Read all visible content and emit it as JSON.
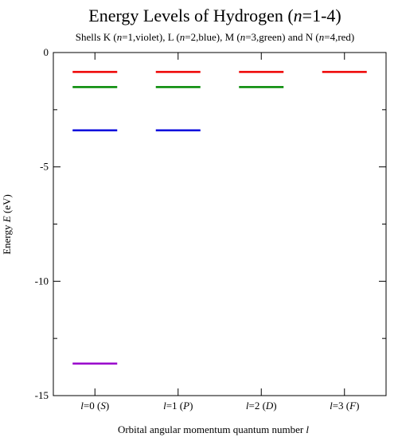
{
  "chart_data": {
    "type": "line",
    "title": {
      "pre": "Energy Levels of Hydrogen (",
      "it": "n",
      "post": "=1-4)"
    },
    "subtitle": [
      {
        "t": "Shells K ("
      },
      {
        "t": "n",
        "i": true
      },
      {
        "t": "=1,violet), L ("
      },
      {
        "t": "n",
        "i": true
      },
      {
        "t": "=2,blue), M ("
      },
      {
        "t": "n",
        "i": true
      },
      {
        "t": "=3,green) and N ("
      },
      {
        "t": "n",
        "i": true
      },
      {
        "t": "=4,red)"
      }
    ],
    "xlabel": {
      "pre": "Orbital angular momentum quantum number ",
      "it": "l"
    },
    "ylabel": {
      "pre": "Energy ",
      "it": "E",
      "post": " (eV)"
    },
    "ylim": [
      -15,
      0
    ],
    "yticks": [
      0,
      -5,
      -10,
      -15
    ],
    "ytick_labels": [
      "0",
      "-5",
      "-10",
      "-15"
    ],
    "yticks_minor": [
      -2.5,
      -7.5,
      -12.5
    ],
    "categories": [
      {
        "pre": "",
        "a": "l",
        "mid": "=0 (",
        "b": "S",
        "post": ")"
      },
      {
        "pre": "",
        "a": "l",
        "mid": "=1 (",
        "b": "P",
        "post": ")"
      },
      {
        "pre": "",
        "a": "l",
        "mid": "=2 (",
        "b": "D",
        "post": ")"
      },
      {
        "pre": "",
        "a": "l",
        "mid": "=3 (",
        "b": "F",
        "post": ")"
      }
    ],
    "grid": false,
    "legend": "none",
    "series": [
      {
        "shell": "K",
        "n": 1,
        "color": "#9900cc",
        "energy": -13.6,
        "l_values": [
          0
        ]
      },
      {
        "shell": "L",
        "n": 2,
        "color": "#0000dd",
        "energy": -3.4,
        "l_values": [
          0,
          1
        ]
      },
      {
        "shell": "M",
        "n": 3,
        "color": "#008800",
        "energy": -1.51,
        "l_values": [
          0,
          1,
          2
        ]
      },
      {
        "shell": "N",
        "n": 4,
        "color": "#ee0000",
        "energy": -0.85,
        "l_values": [
          0,
          1,
          2,
          3
        ]
      }
    ]
  }
}
